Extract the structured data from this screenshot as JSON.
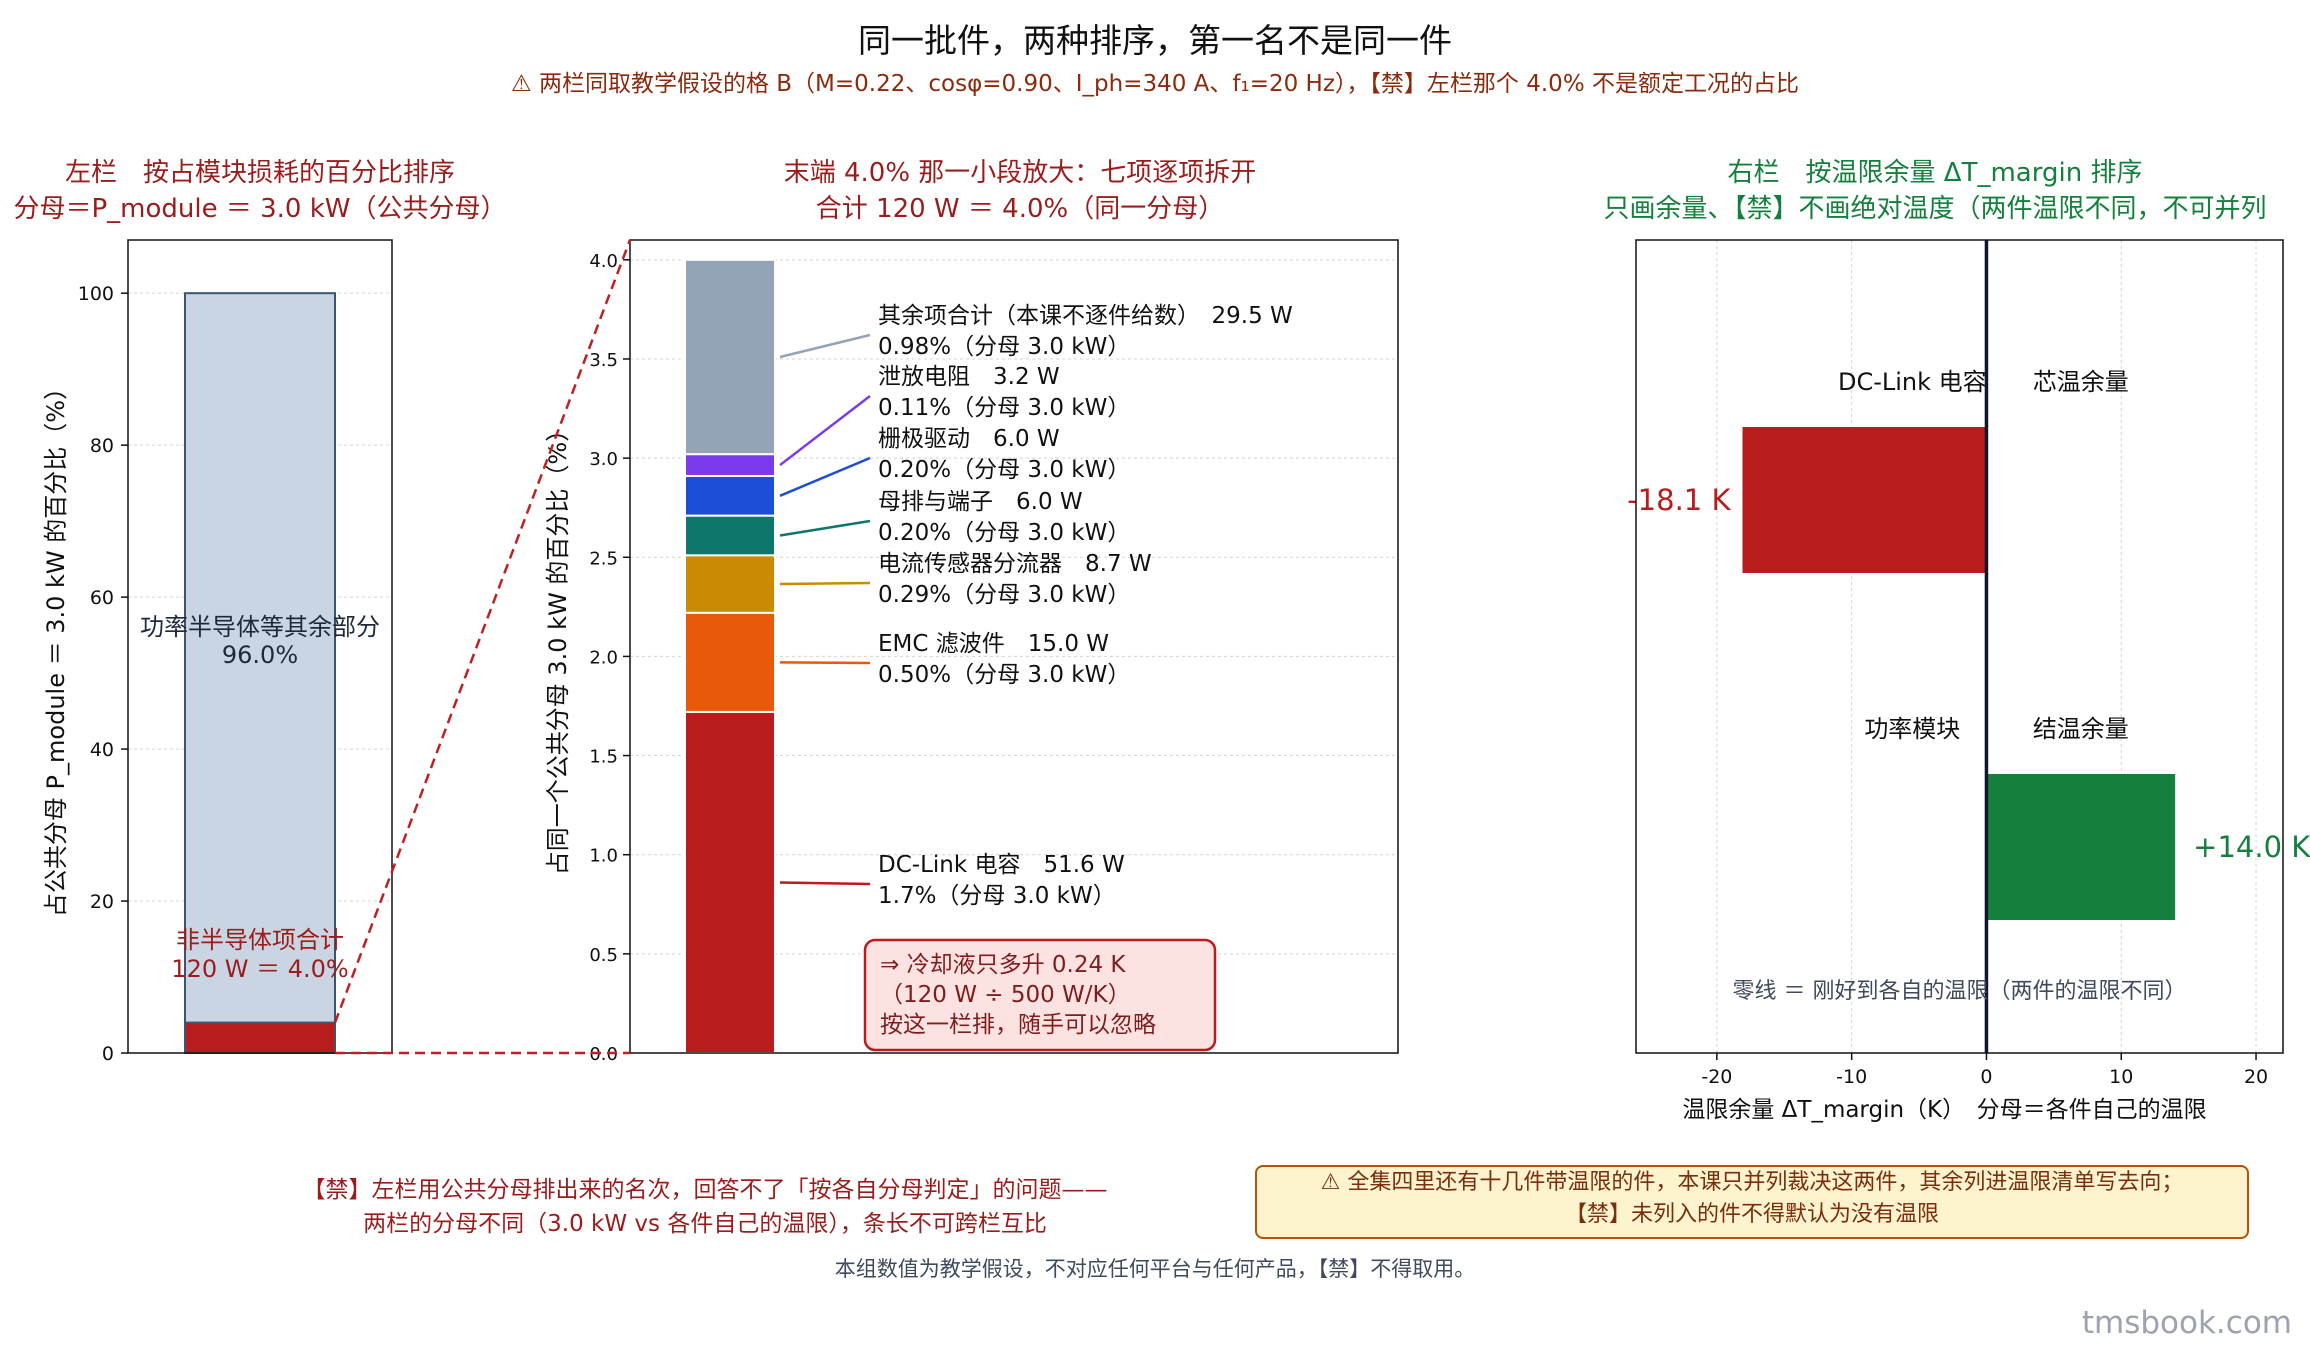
{
  "title": "同一批件，两种排序，第一名不是同一件",
  "subtitle": "⚠ 两栏同取教学假设的格 B（M=0.22、cosφ=0.90、I_ph=340 A、f₁=20 Hz），【禁】左栏那个 4.0% 不是额定工况的占比",
  "colors": {
    "red": "#b91c1c",
    "green": "#15803d",
    "slate": "#c9d5e3",
    "slate_edge": "#3c5470",
    "dashed": "#c0201f"
  },
  "chart_data": [
    {
      "type": "bar",
      "panel": "left",
      "title_line1": "左栏　按占模块损耗的百分比排序",
      "title_line2": "分母＝P_module ＝ 3.0 kW（公共分母）",
      "ylabel": "占公共分母 P_module ＝ 3.0 kW 的百分比（%）",
      "ylim": [
        0,
        107
      ],
      "yticks": [
        0,
        20,
        40,
        60,
        80,
        100
      ],
      "grid": true,
      "stacks": [
        {
          "name": "非半导体项合计",
          "value": 4.0,
          "color": "#b91c1c",
          "label_line1": "非半导体项合计",
          "label_line2": "120 W ＝ 4.0%"
        },
        {
          "name": "功率半导体等其余部分",
          "value": 96.0,
          "color": "#c9d5e3",
          "label_line1": "功率半导体等其余部分",
          "label_line2": "96.0%"
        }
      ]
    },
    {
      "type": "bar",
      "panel": "middle",
      "title_line1": "末端 4.0% 那一小段放大：七项逐项拆开",
      "title_line2": "合计 120 W ＝ 4.0%（同一分母）",
      "ylabel": "占同一个公共分母 3.0 kW 的百分比（%）",
      "ylim": [
        0,
        4.1
      ],
      "yticks": [
        "0.0",
        "0.5",
        "1.0",
        "1.5",
        "2.0",
        "2.5",
        "3.0",
        "3.5",
        "4.0"
      ],
      "grid": true,
      "stacks": [
        {
          "name": "DC-Link 电容",
          "watts": "51.6 W",
          "value": 1.72,
          "pct_label": "1.7%（分母 3.0 kW）",
          "color": "#b91c1c"
        },
        {
          "name": "EMC 滤波件",
          "watts": "15.0 W",
          "value": 0.5,
          "pct_label": "0.50%（分母 3.0 kW）",
          "color": "#ea580c"
        },
        {
          "name": "电流传感器分流器",
          "watts": "8.7 W",
          "value": 0.29,
          "pct_label": "0.29%（分母 3.0 kW）",
          "color": "#ca8a04"
        },
        {
          "name": "母排与端子",
          "watts": "6.0 W",
          "value": 0.2,
          "pct_label": "0.20%（分母 3.0 kW）",
          "color": "#0f766e"
        },
        {
          "name": "栅极驱动",
          "watts": "6.0 W",
          "value": 0.2,
          "pct_label": "0.20%（分母 3.0 kW）",
          "color": "#1d4ed8"
        },
        {
          "name": "泄放电阻",
          "watts": "3.2 W",
          "value": 0.11,
          "pct_label": "0.11%（分母 3.0 kW）",
          "color": "#7c3aed"
        },
        {
          "name": "其余项合计（本课不逐件给数）",
          "watts": "29.5 W",
          "value": 0.98,
          "pct_label": "0.98%（分母 3.0 kW）",
          "color": "#94a3b8"
        }
      ],
      "callout": [
        "⇒ 冷却液只多升 0.24 K",
        "（120 W ÷ 500 W/K）",
        "按这一栏排，随手可以忽略"
      ]
    },
    {
      "type": "bar",
      "panel": "right",
      "orientation": "horizontal",
      "title_line1": "右栏　按温限余量 ΔT_margin 排序",
      "title_line2": "只画余量、【禁】不画绝对温度（两件温限不同，不可并列",
      "xlabel": "温限余量 ΔT_margin（K）　分母＝各件自己的温限",
      "xlim": [
        -26,
        22
      ],
      "xticks": [
        -20,
        -10,
        0,
        10,
        20
      ],
      "grid": true,
      "bars": [
        {
          "name": "DC-Link 电容",
          "metric": "芯温余量",
          "value": -18.1,
          "value_label": "-18.1 K",
          "color": "#b91c1c"
        },
        {
          "name": "功率模块",
          "metric": "结温余量",
          "value": 14.0,
          "value_label": "+14.0 K",
          "color": "#15803d"
        }
      ],
      "zero_note": "零线 ＝ 刚好到各自的温限（两件的温限不同）"
    }
  ],
  "notes": {
    "left_line1": "【禁】左栏用公共分母排出来的名次，回答不了「按各自分母判定」的问题——",
    "left_line2": "两栏的分母不同（3.0 kW vs 各件自己的温限），条长不可跨栏互比",
    "warn_line1": "⚠ 全集四里还有十几件带温限的件，本课只并列裁决这两件，其余列进温限清单写去向；",
    "warn_line2": "【禁】未列入的件不得默认为没有温限",
    "footer": "本组数值为教学假设，不对应任何平台与任何产品，【禁】不得取用。",
    "watermark": "tmsbook.com"
  }
}
